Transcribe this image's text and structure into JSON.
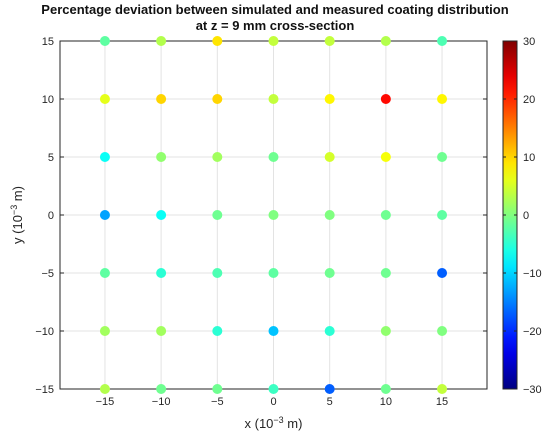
{
  "chart_data": {
    "type": "scatter",
    "title_lines": [
      "Percentage deviation between simulated and measured coating distribution",
      "at z = 9 mm cross-section"
    ],
    "xlabel": {
      "prefix": "x (10",
      "exp": "−3",
      "suffix": " m)"
    },
    "ylabel": {
      "prefix": "y (10",
      "exp": "−3",
      "suffix": " m)"
    },
    "xlim": [
      -19,
      19
    ],
    "ylim": [
      -15,
      15
    ],
    "x_ticks": [
      -15,
      -10,
      -5,
      0,
      5,
      10,
      15
    ],
    "x_tick_labels": [
      "−15",
      "−10",
      "−5",
      "0",
      "5",
      "10",
      "15"
    ],
    "y_ticks": [
      -15,
      -10,
      -5,
      0,
      5,
      10,
      15
    ],
    "y_tick_labels": [
      "−15",
      "−10",
      "−5",
      "0",
      "5",
      "10",
      "15"
    ],
    "grid": true,
    "colormap": "jet",
    "colorbar": {
      "range": [
        -30,
        30
      ],
      "ticks": [
        -30,
        -20,
        -10,
        0,
        10,
        20,
        30
      ],
      "tick_labels": [
        "−30",
        "−20",
        "−10",
        "0",
        "10",
        "20",
        "30"
      ],
      "placement": "right"
    },
    "x": [
      -15,
      -10,
      -5,
      0,
      5,
      10,
      15
    ],
    "y": [
      15,
      10,
      5,
      0,
      -5,
      -10,
      -15
    ],
    "deviation_rows": [
      [
        -2,
        3,
        9,
        4,
        4,
        3,
        -3
      ],
      [
        6,
        10,
        10,
        4,
        8,
        22,
        8
      ],
      [
        -7,
        1,
        2,
        -1,
        5,
        7,
        -1
      ],
      [
        -13,
        -7,
        -1,
        0,
        0,
        -1,
        -2
      ],
      [
        -2,
        -5,
        -3,
        -2,
        -1,
        -1,
        -17
      ],
      [
        2,
        2,
        -5,
        -11,
        -5,
        1,
        0
      ],
      [
        3,
        -1,
        -1,
        -4,
        -17,
        -1,
        4
      ]
    ]
  }
}
